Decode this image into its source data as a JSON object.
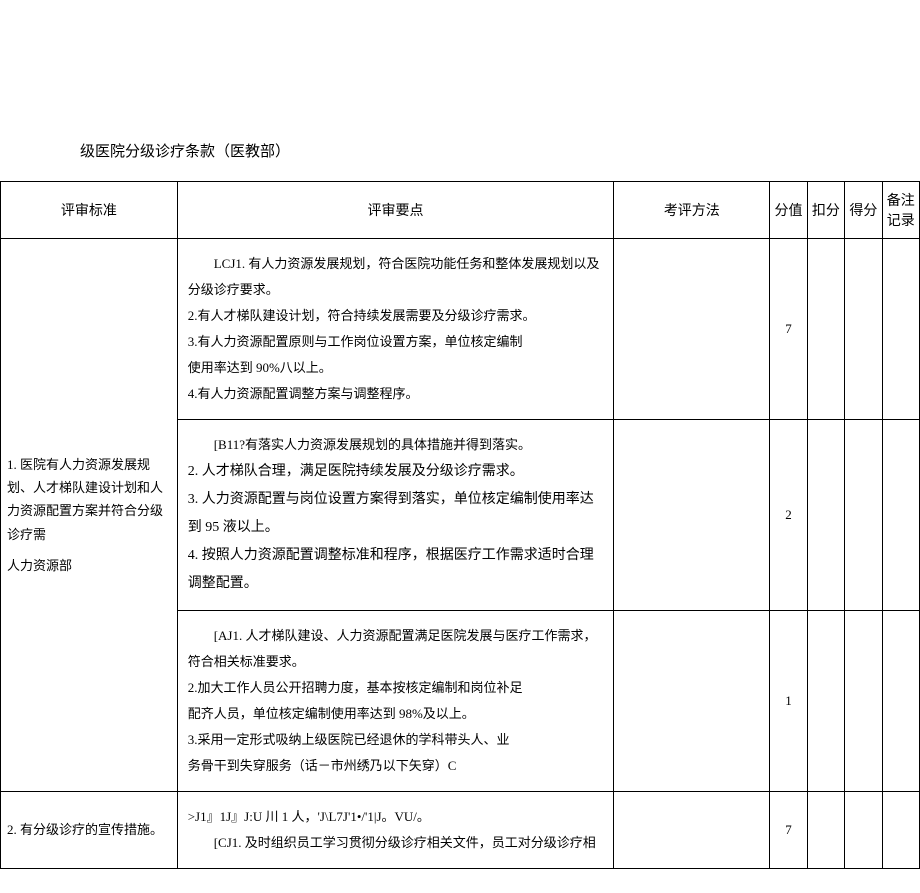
{
  "doc_title": "级医院分级诊疗条款（医教部）",
  "headers": {
    "standard": "评审标准",
    "points": "评审要点",
    "method": "考评方法",
    "score_val": "分值",
    "deduct": "扣分",
    "got": "得分",
    "note": "备注记录"
  },
  "rows": [
    {
      "standard_lines": [
        "1. 医院有人力资源发展规划、人才梯队建设计划和人力资源配置方案并符合分级诊疗需",
        "",
        "人力资源部"
      ],
      "sub": [
        {
          "pts_lines": [
            {
              "cls": "indent",
              "t": "LCJ1. 有人力资源发展规划，符合医院功能任务和整体发展规划以及"
            },
            {
              "cls": "line",
              "t": "分级诊疗要求。"
            },
            {
              "cls": "line",
              "t": "2.有人才梯队建设计划，符合持续发展需要及分级诊疗需求。"
            },
            {
              "cls": "line",
              "t": "3.有人力资源配置原则与工作岗位设置方案，单位核定编制"
            },
            {
              "cls": "line",
              "t": "使用率达到 90%八以上。"
            },
            {
              "cls": "line",
              "t": "4.有人力资源配置调整方案与调整程序。"
            }
          ],
          "score": "7"
        },
        {
          "row_class": "row-b",
          "pts_lines": [
            {
              "cls": "indent",
              "t": "[B11?有落实人力资源发展规划的具体措施并得到落实。"
            },
            {
              "cls": "line",
              "t": "2. 人才梯队合理，满足医院持续发展及分级诊疗需求。"
            },
            {
              "cls": "line",
              "t": "3. 人力资源配置与岗位设置方案得到落实，单位核定编制使用率达到 95 液以上。"
            },
            {
              "cls": "line",
              "t": "4. 按照人力资源配置调整标准和程序，根据医疗工作需求适时合理调整配置。"
            }
          ],
          "score": "2"
        },
        {
          "pts_lines": [
            {
              "cls": "indent",
              "t": "[AJ1. 人才梯队建设、人力资源配置满足医院发展与医疗工作需求，"
            },
            {
              "cls": "line",
              "t": "符合相关标准要求。"
            },
            {
              "cls": "line",
              "t": "2.加大工作人员公开招聘力度，基本按核定编制和岗位补足"
            },
            {
              "cls": "line",
              "t": "配齐人员，单位核定编制使用率达到 98%及以上。"
            },
            {
              "cls": "line",
              "t": "3.采用一定形式吸纳上级医院已经退休的学科带头人、业"
            },
            {
              "cls": "line",
              "t": "务骨干到失穿服务（话－市州绣乃以下矢穿）C"
            }
          ],
          "score": "1"
        }
      ]
    },
    {
      "standard_lines": [
        "2. 有分级诊疗的宣传措施。"
      ],
      "sub": [
        {
          "pts_lines": [
            {
              "cls": "line",
              "t": ">J1』1J』J:U 川 1 人，'J\\L7J'1•/'1|J。VU/。"
            },
            {
              "cls": "indent",
              "t": "[CJ1. 及时组织员工学习贯彻分级诊疗相关文件，员工对分级诊疗相"
            }
          ],
          "score": "7"
        }
      ]
    }
  ]
}
